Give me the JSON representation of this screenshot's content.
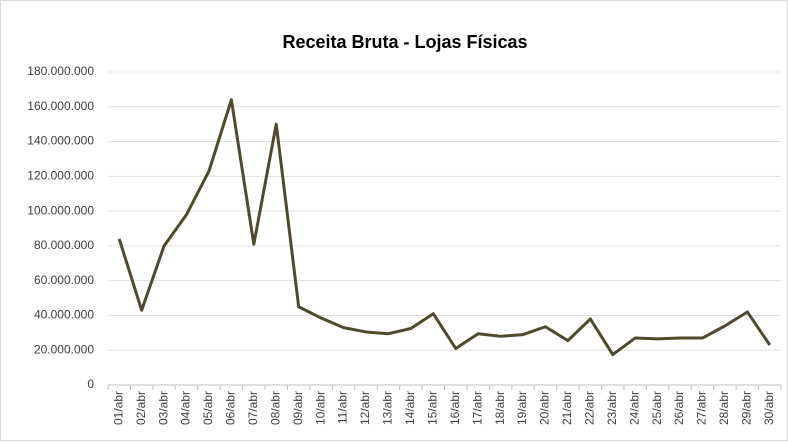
{
  "chart_data": {
    "type": "line",
    "title": "Receita Bruta - Lojas Físicas",
    "categories": [
      "01/abr",
      "02/abr",
      "03/abr",
      "04/abr",
      "05/abr",
      "06/abr",
      "07/abr",
      "08/abr",
      "09/abr",
      "10/abr",
      "11/abr",
      "12/abr",
      "13/abr",
      "14/abr",
      "15/abr",
      "16/abr",
      "17/abr",
      "18/abr",
      "19/abr",
      "20/abr",
      "21/abr",
      "22/abr",
      "23/abr",
      "24/abr",
      "25/abr",
      "26/abr",
      "27/abr",
      "28/abr",
      "29/abr",
      "30/abr"
    ],
    "series": [
      {
        "name": "Receita Bruta",
        "color": "#4f4a2e",
        "values": [
          84000000,
          43000000,
          80000000,
          98000000,
          123000000,
          164000000,
          81000000,
          150000000,
          45000000,
          38500000,
          33000000,
          30500000,
          29500000,
          32500000,
          41000000,
          21000000,
          29500000,
          28000000,
          29000000,
          33500000,
          25500000,
          38000000,
          17500000,
          27000000,
          26500000,
          27000000,
          27000000,
          34000000,
          42000000,
          23000000
        ]
      }
    ],
    "ylim": [
      0,
      180000000
    ],
    "yticks": [
      0,
      {
        "value": 20000000,
        "label": "20.000.000"
      },
      {
        "value": 40000000,
        "label": "40.000.000"
      },
      {
        "value": 60000000,
        "label": "60.000.000"
      },
      {
        "value": 80000000,
        "label": "80.000.000"
      },
      {
        "value": 100000000,
        "label": "100.000.000"
      },
      {
        "value": 120000000,
        "label": "120.000.000"
      },
      {
        "value": 140000000,
        "label": "140.000.000"
      },
      {
        "value": 160000000,
        "label": "160.000.000"
      },
      {
        "value": 180000000,
        "label": "180.000.000"
      }
    ],
    "grid": true
  }
}
